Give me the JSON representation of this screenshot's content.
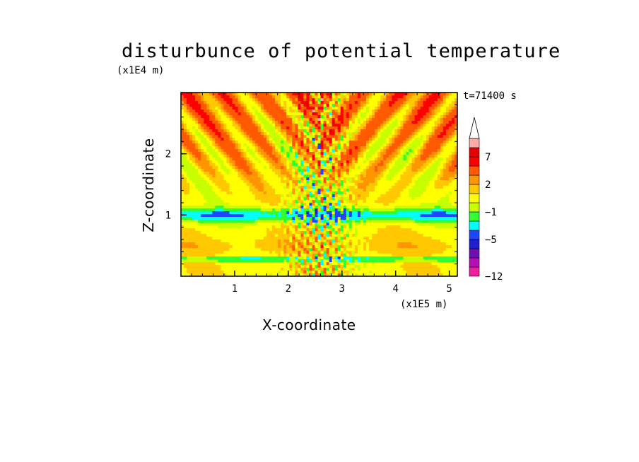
{
  "chart_data": {
    "type": "heatmap",
    "title": "disturbunce of potential temperature",
    "time_label": "t=71400 s",
    "xlabel": "X-coordinate",
    "ylabel": "Z-coordinate",
    "x_unit": "(x1E5 m)",
    "z_unit": "(x1E4 m)",
    "xlim": [
      0,
      5.15
    ],
    "ylim": [
      0,
      3.0
    ],
    "x_ticks": [
      "1",
      "2",
      "3",
      "4",
      "5"
    ],
    "y_ticks": [
      "1",
      "2"
    ],
    "colorbar": {
      "levels": [
        -12,
        -9,
        -7,
        -5,
        -3,
        -2,
        -1,
        0,
        1,
        2,
        3,
        5,
        7,
        9,
        12
      ],
      "labels": [
        "7",
        "2",
        "-1",
        "-5",
        "-12"
      ],
      "colors": [
        "#f01ea0",
        "#b40fb4",
        "#6e0fb4",
        "#1e1ed2",
        "#1e46ff",
        "#00ffff",
        "#32ff32",
        "#c8ff00",
        "#ffff00",
        "#ffc800",
        "#ff9600",
        "#ff5a00",
        "#ff0000",
        "#e60000",
        "#ffaaaa"
      ],
      "extend": "max"
    }
  }
}
